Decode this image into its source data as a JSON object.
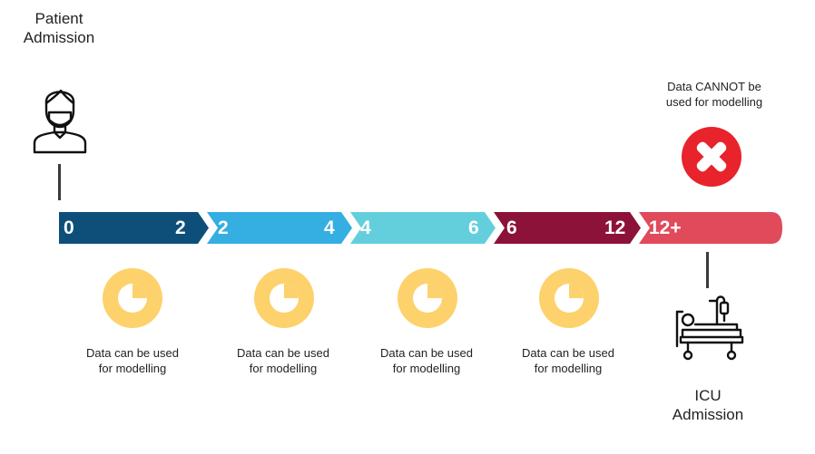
{
  "start": {
    "label_line1": "Patient",
    "label_line2": "Admission",
    "icon": "patient-icon"
  },
  "end": {
    "label_line1": "ICU",
    "label_line2": "Admission",
    "icon": "hospital-bed-icon"
  },
  "exclusion": {
    "label_line1": "Data CANNOT  be",
    "label_line2": "used for modelling",
    "icon": "red-cross-icon",
    "color": "#e8232b"
  },
  "segments": [
    {
      "start": "0",
      "end": "2",
      "color": "#0e4f7a",
      "note_line1": "Data can be used",
      "note_line2": "for modelling"
    },
    {
      "start": "2",
      "end": "4",
      "color": "#35aee2",
      "note_line1": "Data can be used",
      "note_line2": "for modelling"
    },
    {
      "start": "4",
      "end": "6",
      "color": "#64cfdc",
      "note_line1": "Data can be used",
      "note_line2": "for modelling"
    },
    {
      "start": "6",
      "end": "12",
      "color": "#8c1239",
      "note_line1": "Data can be used",
      "note_line2": "for modelling"
    },
    {
      "start": "12+",
      "end": "",
      "color": "#e04a5a"
    }
  ],
  "clock_color": "#fdd26c"
}
